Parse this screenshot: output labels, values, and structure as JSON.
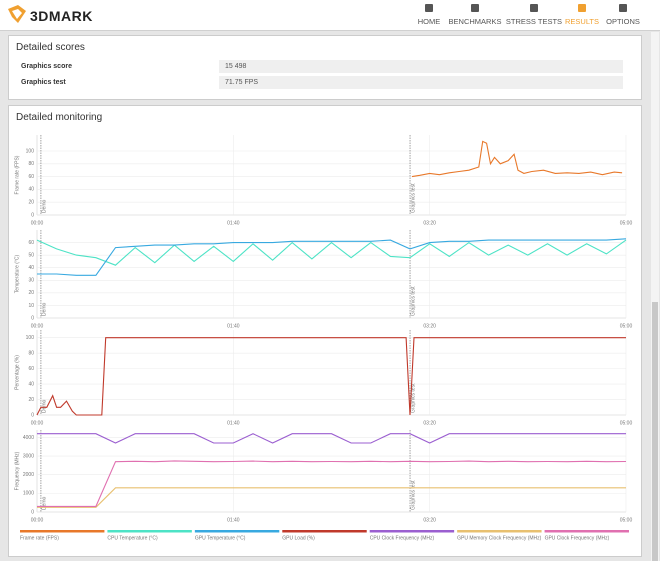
{
  "header": {
    "logo": "3DMARK",
    "nav": [
      "HOME",
      "BENCHMARKS",
      "STRESS TESTS",
      "RESULTS",
      "OPTIONS"
    ],
    "active": 3,
    "active_color": "#f0a030"
  },
  "scores": {
    "title": "Detailed scores",
    "rows": [
      [
        "Graphics score",
        "15 498"
      ],
      [
        "Graphics test",
        "71.75 FPS"
      ]
    ]
  },
  "monitoring": {
    "title": "Detailed monitoring",
    "xlim": [
      0,
      300
    ],
    "xticks": [
      {
        "value": 0,
        "label": "00:00"
      },
      {
        "value": 100,
        "label": "01:40"
      },
      {
        "value": 200,
        "label": "03:20"
      },
      {
        "value": 300,
        "label": "05:00"
      }
    ],
    "markers": [
      {
        "value": 2,
        "label": "Demo"
      },
      {
        "value": 190,
        "label": "Graphics test"
      }
    ],
    "charts": [
      {
        "y_label": "Frame rate (FPS)",
        "ylim": [
          0,
          125
        ],
        "yticks": [
          0,
          20,
          40,
          60,
          80,
          100
        ],
        "x": [
          191,
          195,
          200,
          205,
          210,
          215,
          220,
          225,
          227,
          229,
          231,
          233,
          236,
          240,
          243,
          245,
          248,
          252,
          258,
          264,
          270,
          276,
          282,
          288,
          294,
          298
        ],
        "series": [
          {
            "name": "Frame rate (FPS)",
            "color": "#e8782a",
            "values": [
              60,
              62,
              65,
              63,
              66,
              68,
              70,
              75,
              115,
              112,
              80,
              90,
              80,
              85,
              95,
              70,
              65,
              68,
              70,
              65,
              66,
              65,
              67,
              63,
              67,
              66
            ]
          }
        ]
      },
      {
        "y_label": "Temperature (°C)",
        "ylim": [
          0,
          70
        ],
        "yticks": [
          0,
          10,
          20,
          30,
          40,
          50,
          60
        ],
        "x": [
          0,
          10,
          20,
          30,
          40,
          50,
          60,
          70,
          80,
          90,
          100,
          110,
          120,
          130,
          140,
          150,
          160,
          170,
          180,
          190,
          200,
          210,
          220,
          230,
          240,
          250,
          260,
          270,
          280,
          290,
          300
        ],
        "series": [
          {
            "name": "CPU Temperature (°C)",
            "color": "#4de3c6",
            "values": [
              62,
              55,
              50,
              48,
              42,
              56,
              44,
              58,
              45,
              57,
              45,
              59,
              46,
              60,
              47,
              60,
              48,
              60,
              49,
              48,
              59,
              49,
              60,
              50,
              58,
              50,
              59,
              50,
              59,
              51,
              62
            ]
          },
          {
            "name": "GPU Temperature (°C)",
            "color": "#38a9e0",
            "values": [
              35,
              35,
              34,
              34,
              56,
              57,
              58,
              58,
              59,
              59,
              60,
              60,
              60,
              61,
              61,
              61,
              61,
              61,
              62,
              55,
              60,
              61,
              61,
              62,
              62,
              62,
              62,
              62,
              62,
              62,
              63
            ]
          }
        ]
      },
      {
        "y_label": "Percentage (%)",
        "ylim": [
          0,
          110
        ],
        "yticks": [
          0,
          20,
          40,
          60,
          80,
          100
        ],
        "x": [
          0,
          2,
          5,
          8,
          10,
          12,
          15,
          18,
          20,
          25,
          30,
          33,
          35,
          40,
          100,
          188,
          190,
          192,
          200,
          300
        ],
        "series": [
          {
            "name": "GPU Load (%)",
            "color": "#c0392b",
            "values": [
              0,
              10,
              10,
              25,
              10,
              10,
              18,
              5,
              0,
              0,
              0,
              0,
              100,
              100,
              100,
              100,
              0,
              100,
              100,
              100
            ]
          }
        ]
      },
      {
        "y_label": "Frequency (MHz)",
        "ylim": [
          0,
          4400
        ],
        "yticks": [
          0,
          1000,
          2000,
          3000,
          4000
        ],
        "x": [
          0,
          10,
          20,
          30,
          40,
          50,
          60,
          70,
          80,
          90,
          100,
          110,
          120,
          130,
          140,
          150,
          160,
          170,
          180,
          190,
          200,
          210,
          220,
          230,
          240,
          250,
          260,
          270,
          280,
          290,
          300
        ],
        "series": [
          {
            "name": "CPU Clock Frequency (MHz)",
            "color": "#9b5fd0",
            "values": [
              4200,
              4200,
              4200,
              4200,
              3700,
              4200,
              4200,
              4200,
              4200,
              3700,
              3700,
              4200,
              3700,
              4200,
              4200,
              4200,
              3700,
              3700,
              4200,
              4200,
              3700,
              4200,
              4200,
              4200,
              4200,
              4200,
              4200,
              4200,
              4200,
              4200,
              4200
            ]
          },
          {
            "name": "GPU Memory Clock Frequency (MHz)",
            "color": "#e8c070",
            "values": [
              250,
              250,
              250,
              250,
              1300,
              1300,
              1300,
              1300,
              1300,
              1300,
              1300,
              1300,
              1300,
              1300,
              1300,
              1300,
              1300,
              1300,
              1300,
              1300,
              1300,
              1300,
              1300,
              1300,
              1300,
              1300,
              1300,
              1300,
              1300,
              1300,
              1300
            ]
          },
          {
            "name": "GPU Clock Frequency (MHz)",
            "color": "#e070b0",
            "values": [
              300,
              300,
              300,
              300,
              2700,
              2720,
              2700,
              2740,
              2720,
              2700,
              2710,
              2730,
              2700,
              2720,
              2700,
              2710,
              2700,
              2720,
              2700,
              2720,
              2700,
              2710,
              2730,
              2700,
              2720,
              2700,
              2710,
              2700,
              2720,
              2700,
              2710
            ]
          }
        ]
      }
    ]
  }
}
